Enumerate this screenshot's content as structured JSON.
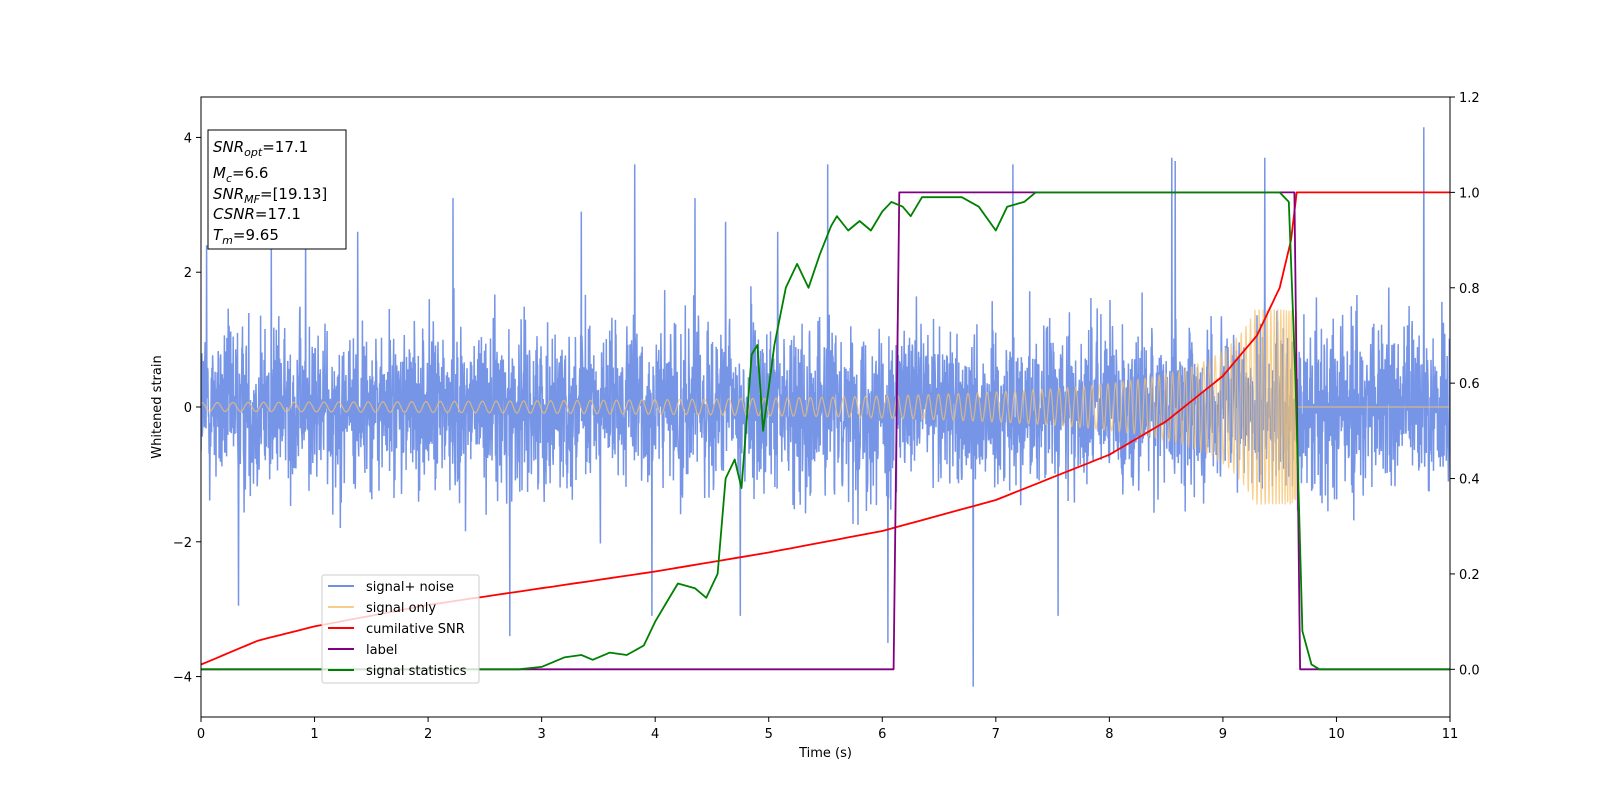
{
  "chart_data": {
    "type": "line",
    "xlabel": "Time (s)",
    "ylabel": "Whitened strain",
    "xlim": [
      0,
      11
    ],
    "ylim_left": [
      -4.6,
      4.6
    ],
    "ylim_right": [
      -0.1,
      1.2
    ],
    "x_ticks": [
      "0",
      "1",
      "2",
      "3",
      "4",
      "5",
      "6",
      "7",
      "8",
      "9",
      "10",
      "11"
    ],
    "y_left_ticks": [
      "−4",
      "−2",
      "0",
      "2",
      "4"
    ],
    "y_right_ticks": [
      "0.0",
      "0.2",
      "0.4",
      "0.6",
      "0.8",
      "1.0",
      "1.2"
    ],
    "grid": false,
    "legend_position": "lower-left",
    "info_box": {
      "snr_opt": "=17.1",
      "mc": "=6.6",
      "snr_mf": "=[19.13]",
      "csnr": "=17.1",
      "tm": "=9.65"
    },
    "series": [
      {
        "name": "signal+ noise",
        "axis": "left",
        "color": "#6f8fe6",
        "description_kind": "noise",
        "noise_sigma": 0.85,
        "spikes": [
          [
            0.05,
            2.4
          ],
          [
            0.33,
            -2.95
          ],
          [
            0.62,
            2.4
          ],
          [
            0.92,
            2.6
          ],
          [
            1.38,
            2.6
          ],
          [
            2.22,
            3.1
          ],
          [
            2.72,
            -3.4
          ],
          [
            3.35,
            2.9
          ],
          [
            3.82,
            3.6
          ],
          [
            3.97,
            -3.1
          ],
          [
            4.35,
            3.1
          ],
          [
            4.62,
            2.75
          ],
          [
            4.75,
            -3.1
          ],
          [
            5.08,
            2.6
          ],
          [
            5.52,
            3.6
          ],
          [
            6.05,
            -3.5
          ],
          [
            6.8,
            -4.15
          ],
          [
            7.15,
            3.6
          ],
          [
            7.55,
            -3.1
          ],
          [
            8.55,
            3.7
          ],
          [
            8.58,
            3.65
          ],
          [
            9.37,
            3.7
          ],
          [
            10.77,
            4.15
          ]
        ]
      },
      {
        "name": "signal only",
        "axis": "left",
        "color": "#f5c26b",
        "description_kind": "chirp",
        "merger_time": 9.65
      },
      {
        "name": "cumilative SNR",
        "axis": "right",
        "color": "#ff0000",
        "points": [
          [
            0,
            0.01
          ],
          [
            0.5,
            0.06
          ],
          [
            1,
            0.09
          ],
          [
            2,
            0.135
          ],
          [
            3,
            0.17
          ],
          [
            4,
            0.205
          ],
          [
            5,
            0.245
          ],
          [
            6,
            0.29
          ],
          [
            7,
            0.355
          ],
          [
            8,
            0.45
          ],
          [
            8.5,
            0.52
          ],
          [
            9,
            0.615
          ],
          [
            9.3,
            0.7
          ],
          [
            9.5,
            0.8
          ],
          [
            9.6,
            0.9
          ],
          [
            9.65,
            1.0
          ],
          [
            11,
            1.0
          ]
        ]
      },
      {
        "name": "label",
        "axis": "right",
        "color": "#800080",
        "points": [
          [
            0,
            0.0
          ],
          [
            6.1,
            0.0
          ],
          [
            6.15,
            1.0
          ],
          [
            9.63,
            1.0
          ],
          [
            9.68,
            0.0
          ],
          [
            11,
            0.0
          ]
        ]
      },
      {
        "name": "signal statistics",
        "axis": "right",
        "color": "#008000",
        "points": [
          [
            0,
            0.0
          ],
          [
            2.8,
            0.0
          ],
          [
            3.0,
            0.005
          ],
          [
            3.2,
            0.025
          ],
          [
            3.35,
            0.03
          ],
          [
            3.45,
            0.02
          ],
          [
            3.6,
            0.035
          ],
          [
            3.75,
            0.03
          ],
          [
            3.9,
            0.05
          ],
          [
            4.0,
            0.1
          ],
          [
            4.1,
            0.14
          ],
          [
            4.2,
            0.18
          ],
          [
            4.35,
            0.17
          ],
          [
            4.45,
            0.15
          ],
          [
            4.55,
            0.2
          ],
          [
            4.62,
            0.4
          ],
          [
            4.7,
            0.44
          ],
          [
            4.76,
            0.38
          ],
          [
            4.85,
            0.66
          ],
          [
            4.9,
            0.68
          ],
          [
            4.95,
            0.5
          ],
          [
            5.05,
            0.68
          ],
          [
            5.15,
            0.8
          ],
          [
            5.25,
            0.85
          ],
          [
            5.35,
            0.8
          ],
          [
            5.45,
            0.87
          ],
          [
            5.55,
            0.93
          ],
          [
            5.6,
            0.95
          ],
          [
            5.7,
            0.92
          ],
          [
            5.8,
            0.94
          ],
          [
            5.9,
            0.92
          ],
          [
            6.0,
            0.96
          ],
          [
            6.08,
            0.98
          ],
          [
            6.18,
            0.97
          ],
          [
            6.25,
            0.95
          ],
          [
            6.35,
            0.99
          ],
          [
            6.5,
            0.99
          ],
          [
            6.7,
            0.99
          ],
          [
            6.85,
            0.97
          ],
          [
            7.0,
            0.92
          ],
          [
            7.1,
            0.97
          ],
          [
            7.25,
            0.98
          ],
          [
            7.35,
            1.0
          ],
          [
            7.5,
            1.0
          ],
          [
            7.7,
            1.0
          ],
          [
            8.0,
            1.0
          ],
          [
            9.5,
            1.0
          ],
          [
            9.58,
            0.98
          ],
          [
            9.64,
            0.6
          ],
          [
            9.7,
            0.08
          ],
          [
            9.78,
            0.01
          ],
          [
            9.85,
            0.0
          ],
          [
            11,
            0.0
          ]
        ]
      }
    ]
  }
}
